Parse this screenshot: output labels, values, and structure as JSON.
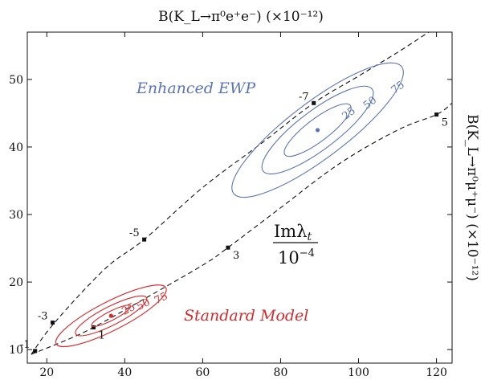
{
  "chart_data": {
    "type": "scatter",
    "title": "B(K_L→π⁰e⁺e⁻)  (×10⁻¹²)",
    "xlabel": "B(K_L→π⁰e⁺e⁻)  (×10⁻¹²)",
    "ylabel": "B(K_L→π⁰μ⁺μ⁻)  (×10⁻¹²)",
    "xlim": [
      15,
      124
    ],
    "ylim": [
      8,
      57
    ],
    "xticks": [
      20,
      40,
      60,
      80,
      100,
      120
    ],
    "yticks": [
      10,
      20,
      30,
      40,
      50
    ],
    "grid": false,
    "line_label": "Imλ_t / 10⁻⁴",
    "line_label_num": "Imλ",
    "line_label_sub": "t",
    "line_label_den": "10",
    "line_label_den_exp": "−4",
    "colors": {
      "standard_model": "#d8282b",
      "enhanced_ewp": "#5b74b3",
      "lines": "#111111"
    },
    "series": [
      {
        "name": "Standard Model",
        "center": [
          36.5,
          15.0
        ],
        "contours": [
          {
            "label": "25",
            "rx": 5.6,
            "ry": 1.15,
            "angle_deg": 27
          },
          {
            "label": "50",
            "rx": 10.2,
            "ry": 2.4,
            "angle_deg": 27
          },
          {
            "label": "75",
            "rx": 15.8,
            "ry": 3.7,
            "angle_deg": 27
          }
        ]
      },
      {
        "name": "Enhanced EWP",
        "center": [
          89.5,
          42.5
        ],
        "contours": [
          {
            "label": "25",
            "rx": 10.5,
            "ry": 2.9,
            "angle_deg": 37
          },
          {
            "label": "50",
            "rx": 17.5,
            "ry": 5.0,
            "angle_deg": 37
          },
          {
            "label": "75",
            "rx": 27.0,
            "ry": 7.2,
            "angle_deg": 37
          }
        ]
      }
    ],
    "dashed_curves": [
      {
        "points": [
          [
            16,
            9.3
          ],
          [
            22,
            14.0
          ],
          [
            35,
            22.0
          ],
          [
            45,
            26.3
          ],
          [
            60,
            34.0
          ],
          [
            75,
            40.5
          ],
          [
            88.5,
            46.5
          ],
          [
            100,
            50.5
          ],
          [
            110,
            54.0
          ],
          [
            118,
            57.0
          ]
        ],
        "marks": [
          {
            "x": 17,
            "y": 9.8,
            "label": "-1"
          },
          {
            "x": 21.5,
            "y": 14.0,
            "label": "-3"
          },
          {
            "x": 45,
            "y": 26.3,
            "label": "-5"
          },
          {
            "x": 88.5,
            "y": 46.5,
            "label": "-7"
          }
        ]
      },
      {
        "points": [
          [
            16,
            9.3
          ],
          [
            25,
            11.4
          ],
          [
            32,
            13.3
          ],
          [
            45,
            17.5
          ],
          [
            60,
            22.5
          ],
          [
            66.5,
            25.1
          ],
          [
            80,
            31.0
          ],
          [
            95,
            37.5
          ],
          [
            110,
            42.5
          ],
          [
            120,
            44.8
          ],
          [
            124,
            46.5
          ]
        ],
        "marks": [
          {
            "x": 32,
            "y": 13.3,
            "label": "1"
          },
          {
            "x": 66.5,
            "y": 25.1,
            "label": "3"
          },
          {
            "x": 120,
            "y": 44.8,
            "label": "5"
          }
        ]
      }
    ]
  }
}
